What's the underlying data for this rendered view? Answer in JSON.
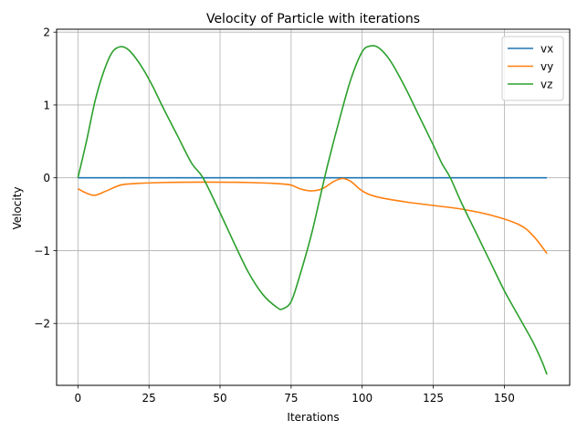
{
  "chart_data": {
    "type": "line",
    "title": "Velocity of Particle with iterations",
    "xlabel": "Iterations",
    "ylabel": "Velocity",
    "xlim": [
      -7.5,
      173
    ],
    "ylim": [
      -2.85,
      2.04
    ],
    "xticks": [
      0,
      25,
      50,
      75,
      100,
      125,
      150
    ],
    "xtick_labels": [
      "0",
      "25",
      "50",
      "75",
      "100",
      "125",
      "150"
    ],
    "yticks": [
      -2,
      -1,
      0,
      1,
      2
    ],
    "ytick_labels": [
      "−2",
      "−1",
      "0",
      "1",
      "2"
    ],
    "grid": true,
    "legend_position": "top-right",
    "series": [
      {
        "name": "vx",
        "color": "#1f77b4",
        "points": [
          [
            0,
            0
          ],
          [
            165,
            0
          ]
        ]
      },
      {
        "name": "vy",
        "color": "#ff7f0e",
        "points": [
          [
            0,
            -0.15
          ],
          [
            3,
            -0.21
          ],
          [
            6,
            -0.24
          ],
          [
            10,
            -0.18
          ],
          [
            15,
            -0.1
          ],
          [
            20,
            -0.08
          ],
          [
            30,
            -0.065
          ],
          [
            45,
            -0.06
          ],
          [
            60,
            -0.065
          ],
          [
            70,
            -0.08
          ],
          [
            75,
            -0.1
          ],
          [
            78,
            -0.15
          ],
          [
            82,
            -0.18
          ],
          [
            86,
            -0.15
          ],
          [
            90,
            -0.05
          ],
          [
            93,
            -0.01
          ],
          [
            96,
            -0.05
          ],
          [
            100,
            -0.18
          ],
          [
            105,
            -0.26
          ],
          [
            115,
            -0.33
          ],
          [
            125,
            -0.38
          ],
          [
            135,
            -0.43
          ],
          [
            145,
            -0.51
          ],
          [
            155,
            -0.64
          ],
          [
            160,
            -0.79
          ],
          [
            165,
            -1.04
          ]
        ]
      },
      {
        "name": "vz",
        "color": "#2ca02c",
        "points": [
          [
            0,
            0
          ],
          [
            3,
            0.5
          ],
          [
            6,
            1.05
          ],
          [
            9,
            1.45
          ],
          [
            12,
            1.72
          ],
          [
            15,
            1.8
          ],
          [
            18,
            1.75
          ],
          [
            22,
            1.55
          ],
          [
            26,
            1.28
          ],
          [
            30,
            0.96
          ],
          [
            35,
            0.58
          ],
          [
            40,
            0.2
          ],
          [
            44,
            0
          ],
          [
            50,
            -0.48
          ],
          [
            55,
            -0.9
          ],
          [
            60,
            -1.3
          ],
          [
            65,
            -1.6
          ],
          [
            70,
            -1.78
          ],
          [
            72,
            -1.8
          ],
          [
            75,
            -1.7
          ],
          [
            78,
            -1.35
          ],
          [
            82,
            -0.8
          ],
          [
            85,
            -0.3
          ],
          [
            88,
            0.2
          ],
          [
            92,
            0.8
          ],
          [
            96,
            1.35
          ],
          [
            100,
            1.73
          ],
          [
            103,
            1.81
          ],
          [
            106,
            1.78
          ],
          [
            110,
            1.6
          ],
          [
            115,
            1.25
          ],
          [
            120,
            0.85
          ],
          [
            125,
            0.45
          ],
          [
            128,
            0.2
          ],
          [
            131,
            0
          ],
          [
            135,
            -0.35
          ],
          [
            140,
            -0.75
          ],
          [
            145,
            -1.15
          ],
          [
            150,
            -1.55
          ],
          [
            155,
            -1.9
          ],
          [
            160,
            -2.25
          ],
          [
            163,
            -2.5
          ],
          [
            165,
            -2.7
          ]
        ]
      }
    ]
  }
}
